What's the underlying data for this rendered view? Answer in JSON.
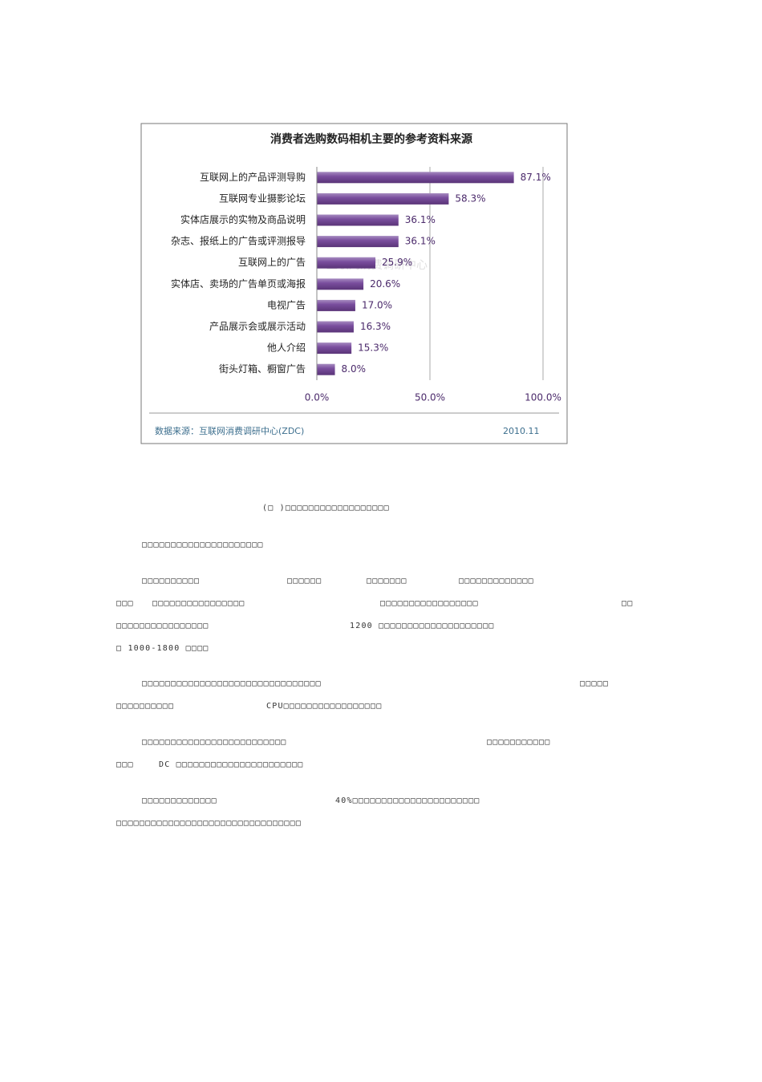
{
  "chart_data": {
    "type": "hbar",
    "title": "消费者选购数码相机主要的参考资料来源",
    "categories": [
      "互联网上的产品评测导购",
      "互联网专业摄影论坛",
      "实体店展示的实物及商品说明",
      "杂志、报纸上的广告或评测报导",
      "互联网上的广告",
      "实体店、卖场的广告单页或海报",
      "电视广告",
      "产品展示会或展示活动",
      "他人介绍",
      "街头灯箱、橱窗广告"
    ],
    "values": [
      87.1,
      58.3,
      36.1,
      36.1,
      25.9,
      20.6,
      17.0,
      16.3,
      15.3,
      8.0
    ],
    "value_labels": [
      "87.1%",
      "58.3%",
      "36.1%",
      "36.1%",
      "25.9%",
      "20.6%",
      "17.0%",
      "16.3%",
      "15.3%",
      "8.0%"
    ],
    "color": "#7a4e9e",
    "xlim": [
      0,
      100
    ],
    "xticks": [
      {
        "value": 0,
        "label": "0.0%"
      },
      {
        "value": 50,
        "label": "50.0%"
      },
      {
        "value": 100,
        "label": "100.0%"
      }
    ],
    "grid": true,
    "watermark": "互联网消费调研中心",
    "source": "数据来源：互联网消费调研中心(ZDC)",
    "date": "2010.11"
  },
  "document": {
    "caption": "(□ )□□□□□□□□□□□□□□□□□□",
    "paragraphs": [
      [
        [
          "□□□□□□□□□□□□□□□□□□□□□"
        ]
      ],
      [
        [
          "□□□□□□□□□□",
          "□□□□□□",
          "□□□□□□□",
          "□□□□□□□□□□□□□"
        ],
        [
          "□□□",
          "□□□□□□□□□□□□□□□□",
          "□□□□□□□□□□□□□□□□□",
          "□□"
        ],
        [
          "□□□□□□□□□□□□□□□□",
          "1200 □□□□□□□□□□□□□□□□□□□□"
        ],
        [
          "□  1000-1800 □□□□"
        ]
      ],
      [
        [
          "□□□□□□□□□□□□□□□□□□□□□□□□□□□□□□□",
          "□□□□□"
        ],
        [
          "□□□□□□□□□□",
          "CPU□□□□□□□□□□□□□□□□□"
        ]
      ],
      [
        [
          "□□□□□□□□□□□□□□□□□□□□□□□□□",
          "□□□□□□□□□□□"
        ],
        [
          "□□□",
          "DC □□□□□□□□□□□□□□□□□□□□□□"
        ]
      ],
      [
        [
          "□□□□□□□□□□□□□",
          "40%□□□□□□□□□□□□□□□□□□□□□□"
        ],
        [
          "□□□□□□□□□□□□□□□□□□□□□□□□□□□□□□□□"
        ]
      ]
    ]
  }
}
